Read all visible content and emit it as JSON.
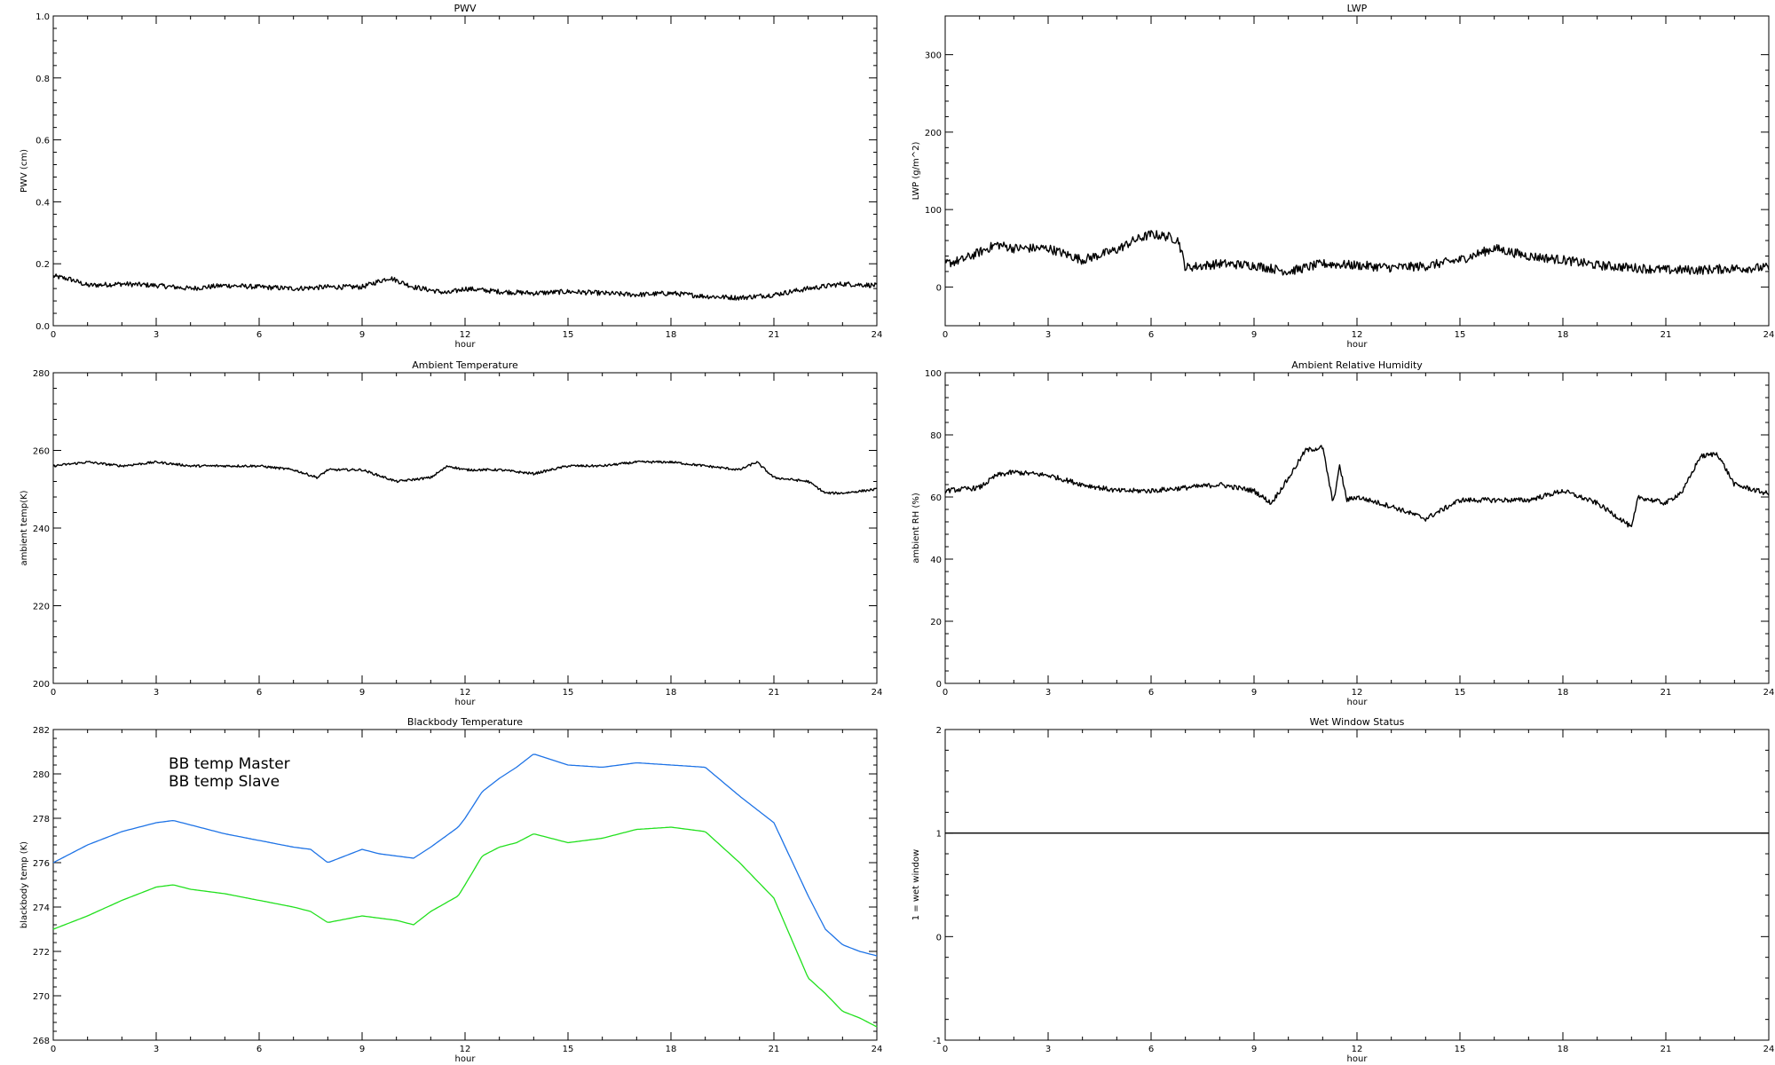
{
  "chart_data": [
    {
      "type": "line",
      "title": "PWV",
      "xlabel": "hour",
      "ylabel": "PWV (cm)",
      "xlim": [
        0,
        24
      ],
      "ylim": [
        0,
        1.0
      ],
      "x_ticks": [
        0,
        3,
        6,
        9,
        12,
        15,
        18,
        21,
        24
      ],
      "y_ticks": [
        0.0,
        0.2,
        0.4,
        0.6,
        0.8,
        1.0
      ],
      "y_tick_labels": [
        "0.0",
        "0.2",
        "0.4",
        "0.6",
        "0.8",
        "1.0"
      ],
      "grid": false,
      "series": [
        {
          "color": "#000000",
          "noise": 0.008,
          "x": [
            0,
            0.5,
            1,
            2,
            3,
            4,
            5,
            6,
            7,
            8,
            9,
            9.8,
            10.5,
            11.5,
            12,
            13,
            14,
            15,
            16,
            17,
            18,
            19,
            20,
            21,
            22,
            23,
            24
          ],
          "y": [
            0.16,
            0.15,
            0.13,
            0.135,
            0.13,
            0.12,
            0.13,
            0.125,
            0.12,
            0.125,
            0.125,
            0.155,
            0.125,
            0.105,
            0.12,
            0.11,
            0.105,
            0.11,
            0.105,
            0.1,
            0.105,
            0.095,
            0.09,
            0.1,
            0.12,
            0.135,
            0.13
          ]
        }
      ]
    },
    {
      "type": "line",
      "title": "LWP",
      "xlabel": "hour",
      "ylabel": "LWP (g/m^2)",
      "xlim": [
        0,
        24
      ],
      "ylim": [
        -50,
        350
      ],
      "x_ticks": [
        0,
        3,
        6,
        9,
        12,
        15,
        18,
        21,
        24
      ],
      "y_ticks": [
        0,
        100,
        200,
        300
      ],
      "y_tick_labels": [
        "0",
        "100",
        "200",
        "300"
      ],
      "grid": false,
      "series": [
        {
          "color": "#000000",
          "noise": 6,
          "x": [
            0,
            0.5,
            1,
            1.5,
            2,
            3,
            4,
            5,
            5.5,
            6,
            6.5,
            6.8,
            7,
            8,
            9,
            10,
            11,
            12,
            13,
            14,
            15,
            16,
            17,
            18,
            19,
            20,
            21,
            22,
            23,
            24
          ],
          "y": [
            30,
            35,
            45,
            55,
            50,
            50,
            35,
            48,
            60,
            68,
            65,
            60,
            25,
            30,
            28,
            20,
            30,
            28,
            25,
            27,
            35,
            50,
            40,
            35,
            28,
            25,
            22,
            22,
            24,
            25
          ]
        }
      ]
    },
    {
      "type": "line",
      "title": "Ambient Temperature",
      "xlabel": "hour",
      "ylabel": "ambient temp(K)",
      "xlim": [
        0,
        24
      ],
      "ylim": [
        200,
        280
      ],
      "x_ticks": [
        0,
        3,
        6,
        9,
        12,
        15,
        18,
        21,
        24
      ],
      "y_ticks": [
        200,
        220,
        240,
        260,
        280
      ],
      "y_tick_labels": [
        "200",
        "220",
        "240",
        "260",
        "280"
      ],
      "grid": false,
      "series": [
        {
          "color": "#000000",
          "noise": 0.3,
          "x": [
            0,
            1,
            2,
            3,
            4,
            5,
            6,
            7,
            7.7,
            8,
            9,
            10,
            11,
            11.5,
            12,
            13,
            14,
            15,
            16,
            17,
            18,
            19,
            20,
            20.5,
            21,
            22,
            22.5,
            23,
            24
          ],
          "y": [
            256,
            257,
            256,
            257,
            256,
            256,
            256,
            255,
            253,
            255,
            255,
            252,
            253,
            256,
            255,
            255,
            254,
            256,
            256,
            257,
            257,
            256,
            255,
            257,
            253,
            252,
            249,
            249,
            250
          ]
        }
      ]
    },
    {
      "type": "line",
      "title": "Ambient Relative Humidity",
      "xlabel": "hour",
      "ylabel": "ambient RH (%)",
      "xlim": [
        0,
        24
      ],
      "ylim": [
        0,
        100
      ],
      "x_ticks": [
        0,
        3,
        6,
        9,
        12,
        15,
        18,
        21,
        24
      ],
      "y_ticks": [
        0,
        20,
        40,
        60,
        80,
        100
      ],
      "y_tick_labels": [
        "0",
        "20",
        "40",
        "60",
        "80",
        "100"
      ],
      "grid": false,
      "series": [
        {
          "color": "#000000",
          "noise": 0.8,
          "x": [
            0,
            1,
            1.5,
            2,
            3,
            4,
            5,
            6,
            7,
            8,
            9,
            9.5,
            10,
            10.5,
            11,
            11.3,
            11.5,
            11.7,
            12,
            13,
            14,
            15,
            16,
            17,
            18,
            19,
            19.8,
            20,
            20.2,
            21,
            21.5,
            22,
            22.5,
            23,
            24
          ],
          "y": [
            62,
            63,
            67,
            68,
            67,
            64,
            62,
            62,
            63,
            64,
            62,
            58,
            66,
            75,
            76,
            58,
            70,
            59,
            60,
            57,
            53,
            59,
            59,
            59,
            62,
            58,
            52,
            50,
            60,
            58,
            62,
            73,
            74,
            64,
            61
          ]
        }
      ]
    },
    {
      "type": "line",
      "title": "Blackbody Temperature",
      "xlabel": "hour",
      "ylabel": "blackbody temp (K)",
      "xlim": [
        0,
        24
      ],
      "ylim": [
        268,
        282
      ],
      "x_ticks": [
        0,
        3,
        6,
        9,
        12,
        15,
        18,
        21,
        24
      ],
      "y_ticks": [
        268,
        270,
        272,
        274,
        276,
        278,
        280,
        282
      ],
      "y_tick_labels": [
        "268",
        "270",
        "272",
        "274",
        "276",
        "278",
        "280",
        "282"
      ],
      "grid": false,
      "legend": "top-left",
      "series": [
        {
          "name": "BB temp Master",
          "color": "#1e73e6",
          "noise": 0,
          "x": [
            0,
            1,
            2,
            3,
            3.5,
            4,
            5,
            6,
            7,
            7.5,
            8,
            9,
            9.5,
            10,
            10.5,
            11,
            11.8,
            12,
            12.5,
            13,
            13.5,
            14,
            15,
            16,
            17,
            18,
            19,
            20,
            21,
            22,
            22.5,
            23,
            23.5,
            24
          ],
          "y": [
            276,
            276.8,
            277.4,
            277.8,
            277.9,
            277.7,
            277.3,
            277,
            276.7,
            276.6,
            276,
            276.6,
            276.4,
            276.3,
            276.2,
            276.7,
            277.6,
            278,
            279.2,
            279.8,
            280.3,
            280.9,
            280.4,
            280.3,
            280.5,
            280.4,
            280.3,
            279,
            277.8,
            274.5,
            273,
            272.3,
            272,
            271.8
          ]
        },
        {
          "name": "BB temp Slave",
          "color": "#22e01e",
          "noise": 0,
          "x": [
            0,
            1,
            2,
            3,
            3.5,
            4,
            5,
            6,
            7,
            7.5,
            8,
            9,
            9.5,
            10,
            10.5,
            11,
            11.8,
            12,
            12.5,
            13,
            13.5,
            14,
            15,
            16,
            17,
            18,
            19,
            20,
            21,
            22,
            22.5,
            23,
            23.5,
            24
          ],
          "y": [
            273,
            273.6,
            274.3,
            274.9,
            275,
            274.8,
            274.6,
            274.3,
            274,
            273.8,
            273.3,
            273.6,
            273.5,
            273.4,
            273.2,
            273.8,
            274.5,
            275,
            276.3,
            276.7,
            276.9,
            277.3,
            276.9,
            277.1,
            277.5,
            277.6,
            277.4,
            276,
            274.4,
            270.8,
            270.1,
            269.3,
            269,
            268.6
          ]
        }
      ]
    },
    {
      "type": "line",
      "title": "Wet Window Status",
      "xlabel": "hour",
      "ylabel": "1 = wet window",
      "xlim": [
        0,
        24
      ],
      "ylim": [
        -1,
        2
      ],
      "x_ticks": [
        0,
        3,
        6,
        9,
        12,
        15,
        18,
        21,
        24
      ],
      "y_ticks": [
        -1,
        0,
        1,
        2
      ],
      "y_tick_labels": [
        "-1",
        "0",
        "1",
        "2"
      ],
      "grid": false,
      "series": [
        {
          "color": "#000000",
          "noise": 0,
          "x": [
            0,
            24
          ],
          "y": [
            1,
            1
          ]
        }
      ]
    }
  ]
}
